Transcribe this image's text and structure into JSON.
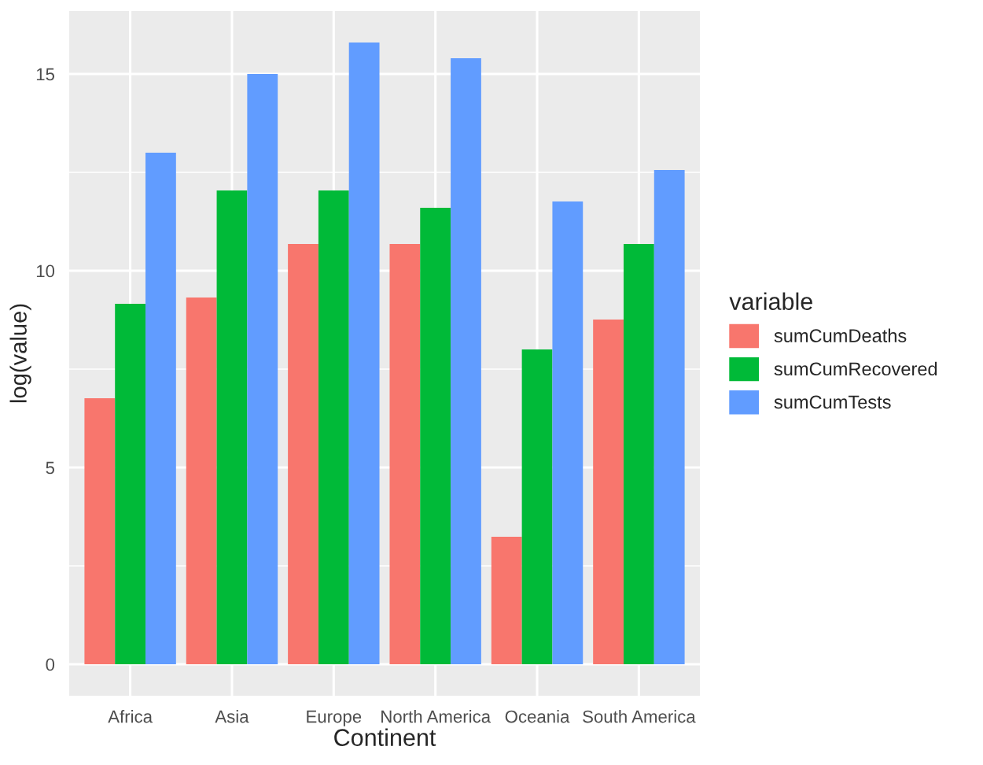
{
  "chart_data": {
    "type": "bar",
    "xlabel": "Continent",
    "ylabel": "log(value)",
    "legend_title": "variable",
    "categories": [
      "Africa",
      "Asia",
      "Europe",
      "North America",
      "Oceania",
      "South America"
    ],
    "series": [
      {
        "name": "sumCumDeaths",
        "color": "#f8766d",
        "values": [
          6.76,
          9.32,
          10.68,
          10.68,
          3.24,
          8.76
        ]
      },
      {
        "name": "sumCumRecovered",
        "color": "#00ba38",
        "values": [
          9.16,
          12.04,
          12.04,
          11.6,
          8.0,
          10.68
        ]
      },
      {
        "name": "sumCumTests",
        "color": "#619cff",
        "values": [
          13.0,
          15.0,
          15.8,
          15.4,
          11.76,
          12.56
        ]
      }
    ],
    "ylim": [
      -0.8,
      16.6
    ],
    "yticks": [
      0,
      5,
      10,
      15
    ],
    "grid": true,
    "legend": "right"
  }
}
